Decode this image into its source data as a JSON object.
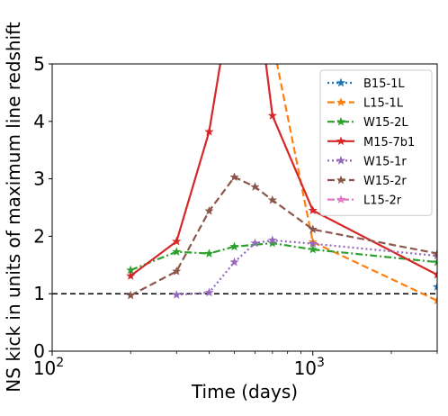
{
  "chart_data": {
    "type": "line",
    "xlabel": "Time (days)",
    "ylabel": "NS kick in units of maximum line redshift",
    "xscale": "log",
    "xlim": [
      100,
      3000
    ],
    "ylim": [
      0,
      5
    ],
    "xticks": [
      {
        "value": 100,
        "base": "10",
        "exp": "2"
      },
      {
        "value": 1000,
        "base": "10",
        "exp": "3"
      }
    ],
    "yticks": [
      0,
      1,
      2,
      3,
      4,
      5
    ],
    "reference_line": {
      "y": 1,
      "style": "dashed",
      "color": "#000000"
    },
    "legend_position": "upper right",
    "series": [
      {
        "name": "B15-1L",
        "color": "#1f77b4",
        "linestyle": "dotted",
        "marker": "star",
        "points": [
          [
            3000,
            1.12
          ]
        ]
      },
      {
        "name": "L15-1L",
        "color": "#ff7f0e",
        "linestyle": "dashed",
        "marker": "star",
        "points": [
          [
            700,
            5.4
          ],
          [
            1000,
            1.9
          ],
          [
            3000,
            0.88
          ]
        ]
      },
      {
        "name": "W15-2L",
        "color": "#2ca02c",
        "linestyle": "dashdot",
        "marker": "star",
        "points": [
          [
            200,
            1.41
          ],
          [
            300,
            1.73
          ],
          [
            400,
            1.7
          ],
          [
            500,
            1.82
          ],
          [
            700,
            1.88
          ],
          [
            1000,
            1.77
          ],
          [
            3000,
            1.55
          ]
        ]
      },
      {
        "name": "M15-7b1",
        "color": "#d62728",
        "linestyle": "solid",
        "marker": "star",
        "points": [
          [
            200,
            1.31
          ],
          [
            300,
            1.91
          ],
          [
            400,
            3.82
          ],
          [
            480,
            6.0
          ],
          [
            620,
            6.0
          ],
          [
            700,
            4.1
          ],
          [
            1000,
            2.45
          ],
          [
            3000,
            1.33
          ]
        ]
      },
      {
        "name": "W15-1r",
        "color": "#9467bd",
        "linestyle": "dotted",
        "marker": "star",
        "points": [
          [
            300,
            0.98
          ],
          [
            400,
            1.02
          ],
          [
            500,
            1.55
          ],
          [
            600,
            1.88
          ],
          [
            700,
            1.93
          ],
          [
            1000,
            1.87
          ],
          [
            3000,
            1.66
          ]
        ]
      },
      {
        "name": "W15-2r",
        "color": "#8c564b",
        "linestyle": "dashed",
        "marker": "star",
        "points": [
          [
            200,
            0.97
          ],
          [
            300,
            1.39
          ],
          [
            400,
            2.44
          ],
          [
            500,
            3.03
          ],
          [
            600,
            2.86
          ],
          [
            700,
            2.63
          ],
          [
            1000,
            2.12
          ],
          [
            3000,
            1.7
          ]
        ]
      },
      {
        "name": "L15-2r",
        "color": "#e377c2",
        "linestyle": "dashdot",
        "marker": "star",
        "points": []
      }
    ]
  }
}
